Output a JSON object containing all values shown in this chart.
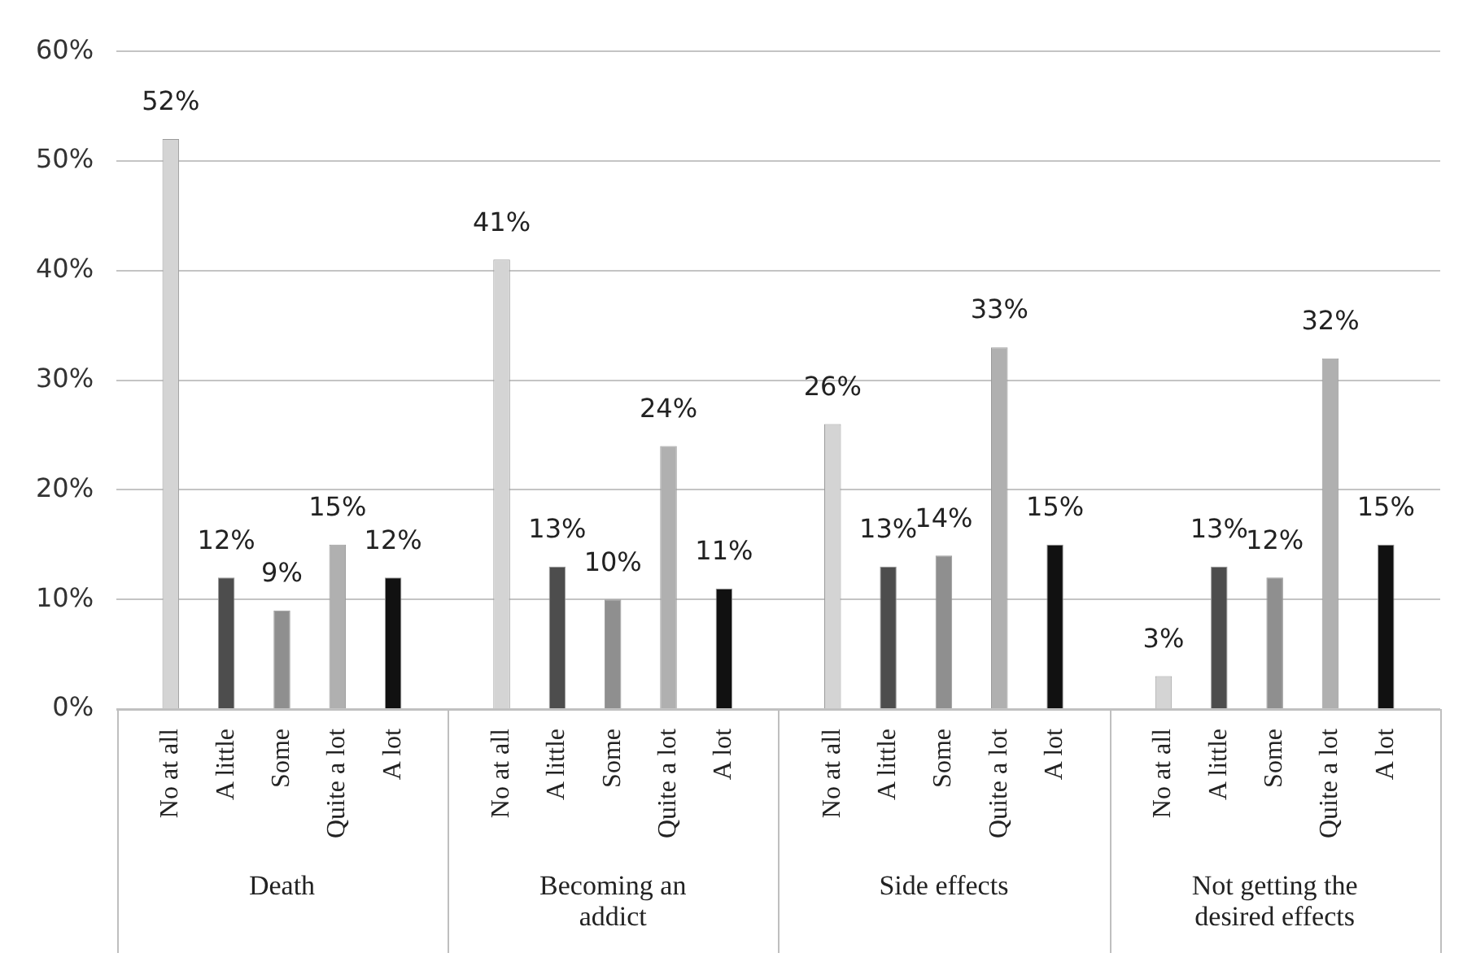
{
  "chart_data": {
    "type": "bar",
    "categories": [
      "Death",
      "Becoming an addict",
      "Side effects",
      "Not getting the desired effects"
    ],
    "series": [
      {
        "name": "No at all",
        "color": "#d4d4d4",
        "values": [
          52,
          41,
          26,
          3
        ],
        "value_labels": [
          "52%",
          "41%",
          "26%",
          "3%"
        ]
      },
      {
        "name": "A little",
        "color": "#4d4d4d",
        "values": [
          12,
          13,
          13,
          13
        ],
        "value_labels": [
          "12%",
          "13%",
          "13%",
          "13%"
        ]
      },
      {
        "name": "Some",
        "color": "#8f8f8f",
        "values": [
          9,
          10,
          14,
          12
        ],
        "value_labels": [
          "9%",
          "10%",
          "14%",
          "12%"
        ]
      },
      {
        "name": "Quite a lot",
        "color": "#b0b0b0",
        "values": [
          15,
          24,
          33,
          32
        ],
        "value_labels": [
          "15%",
          "24%",
          "33%",
          "32%"
        ]
      },
      {
        "name": "A lot",
        "color": "#111111",
        "values": [
          12,
          11,
          15,
          15
        ],
        "value_labels": [
          "12%",
          "11%",
          "15%",
          "15%"
        ]
      }
    ],
    "ylim": [
      0,
      60
    ],
    "yticks": [
      {
        "value": 0,
        "label": "0%"
      },
      {
        "value": 10,
        "label": "10%"
      },
      {
        "value": 20,
        "label": "20%"
      },
      {
        "value": 30,
        "label": "30%"
      },
      {
        "value": 40,
        "label": "40%"
      },
      {
        "value": 50,
        "label": "50%"
      },
      {
        "value": 60,
        "label": "60%"
      }
    ],
    "grid": "y",
    "legend": false
  }
}
